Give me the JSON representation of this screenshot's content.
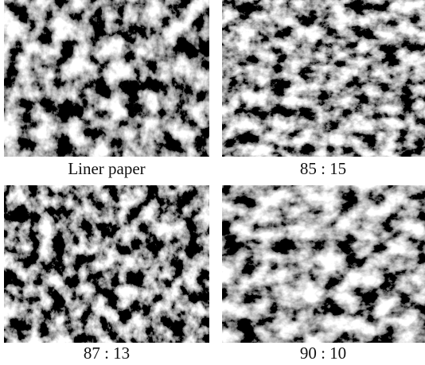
{
  "panels": [
    {
      "caption": "Liner paper"
    },
    {
      "caption": "85 : 15"
    },
    {
      "caption": "87 : 13"
    },
    {
      "caption": "90 : 10"
    }
  ]
}
